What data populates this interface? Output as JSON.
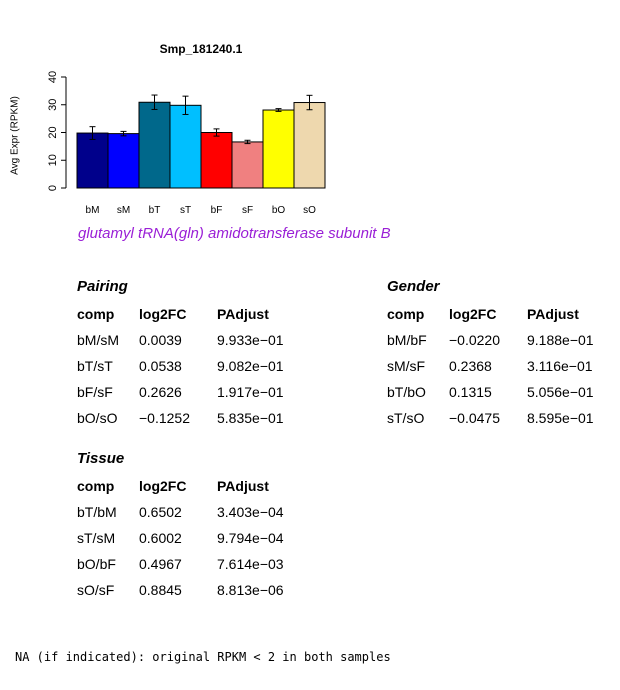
{
  "chart_data": {
    "type": "bar",
    "title": "Smp_181240.1",
    "ylabel": "Avg Expr (RPKM)",
    "xlabel": "",
    "ylim": [
      0,
      40
    ],
    "yticks": [
      0,
      10,
      20,
      30,
      40
    ],
    "categories": [
      "bM",
      "sM",
      "bT",
      "sT",
      "bF",
      "sF",
      "bO",
      "sO"
    ],
    "values": [
      19.8,
      19.6,
      30.9,
      29.8,
      20.0,
      16.6,
      28.1,
      30.8
    ],
    "error": [
      2.3,
      0.8,
      2.6,
      3.3,
      1.3,
      0.6,
      0.5,
      2.6
    ],
    "colors": [
      "#00008b",
      "#0000ff",
      "#00688b",
      "#00bfff",
      "#ff0000",
      "#f08080",
      "#ffff00",
      "#eed8ae"
    ]
  },
  "gene_name": "glutamyl tRNA(gln) amidotransferase subunit B",
  "tables": {
    "pairing": {
      "title": "Pairing",
      "headers": [
        "comp",
        "log2FC",
        "PAdjust"
      ],
      "rows": [
        [
          "bM/sM",
          "0.0039",
          "9.933e−01"
        ],
        [
          "bT/sT",
          "0.0538",
          "9.082e−01"
        ],
        [
          "bF/sF",
          "0.2626",
          "1.917e−01"
        ],
        [
          "bO/sO",
          "−0.1252",
          "5.835e−01"
        ]
      ]
    },
    "gender": {
      "title": "Gender",
      "headers": [
        "comp",
        "log2FC",
        "PAdjust"
      ],
      "rows": [
        [
          "bM/bF",
          "−0.0220",
          "9.188e−01"
        ],
        [
          "sM/sF",
          "0.2368",
          "3.116e−01"
        ],
        [
          "bT/bO",
          "0.1315",
          "5.056e−01"
        ],
        [
          "sT/sO",
          "−0.0475",
          "8.595e−01"
        ]
      ]
    },
    "tissue": {
      "title": "Tissue",
      "headers": [
        "comp",
        "log2FC",
        "PAdjust"
      ],
      "rows": [
        [
          "bT/bM",
          "0.6502",
          "3.403e−04"
        ],
        [
          "sT/sM",
          "0.6002",
          "9.794e−04"
        ],
        [
          "bO/bF",
          "0.4967",
          "7.614e−03"
        ],
        [
          "sO/sF",
          "0.8845",
          "8.813e−06"
        ]
      ]
    }
  },
  "footnote": "NA (if indicated): original RPKM < 2 in both samples"
}
